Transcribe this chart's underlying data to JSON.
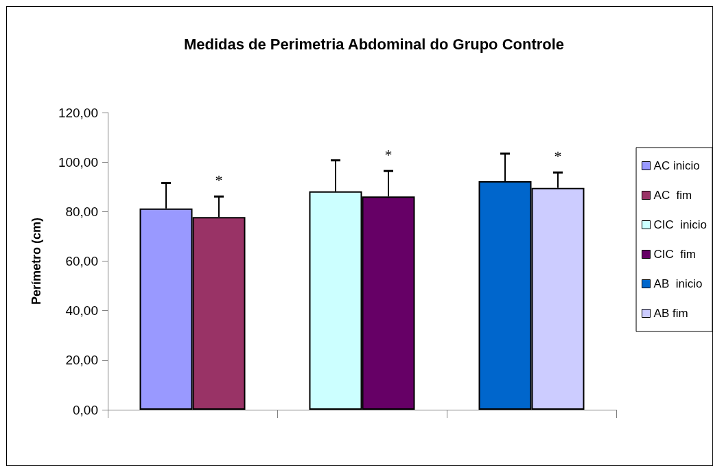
{
  "chart_data": {
    "type": "bar",
    "title": "Medidas de Perimetria Abdominal do Grupo Controle",
    "ylabel": "Perímetro (cm)",
    "categories": [
      null,
      null,
      null
    ],
    "series": [
      {
        "name": "AC inicio",
        "color": "#9999ff",
        "values": [
          81.3,
          null,
          null
        ],
        "errors": [
          [
            81.3,
            91.6
          ],
          null,
          null
        ]
      },
      {
        "name": "AC  fim",
        "color": "#993366",
        "values": [
          77.8,
          null,
          null
        ],
        "errors": [
          [
            77.8,
            86.1
          ],
          null,
          null
        ]
      },
      {
        "name": "CIC  inicio",
        "color": "#ccffff",
        "values": [
          null,
          88.2,
          null
        ],
        "errors": [
          null,
          [
            88.2,
            100.7
          ],
          null
        ]
      },
      {
        "name": "CIC  fim",
        "color": "#660066",
        "values": [
          null,
          86.1,
          null
        ],
        "errors": [
          null,
          [
            86.1,
            96.4
          ],
          null
        ]
      },
      {
        "name": "AB  inicio",
        "color": "#0066cc",
        "values": [
          null,
          null,
          92.3
        ],
        "errors": [
          null,
          null,
          [
            92.3,
            103.4
          ]
        ]
      },
      {
        "name": "AB fim",
        "color": "#ccccff",
        "values": [
          null,
          null,
          89.6
        ],
        "errors": [
          null,
          null,
          [
            89.6,
            95.8
          ]
        ]
      }
    ],
    "annotations": [
      "*",
      "*",
      "*"
    ],
    "ylim": [
      0,
      120
    ],
    "yticks": [
      {
        "value": 0,
        "label": "0,00"
      },
      {
        "value": 20,
        "label": "20,00"
      },
      {
        "value": 40,
        "label": "40,00"
      },
      {
        "value": 60,
        "label": "60,00"
      },
      {
        "value": 80,
        "label": "80,00"
      },
      {
        "value": 100,
        "label": "100,00"
      },
      {
        "value": 120,
        "label": "120,00"
      }
    ],
    "grid": false,
    "legend": "right"
  }
}
